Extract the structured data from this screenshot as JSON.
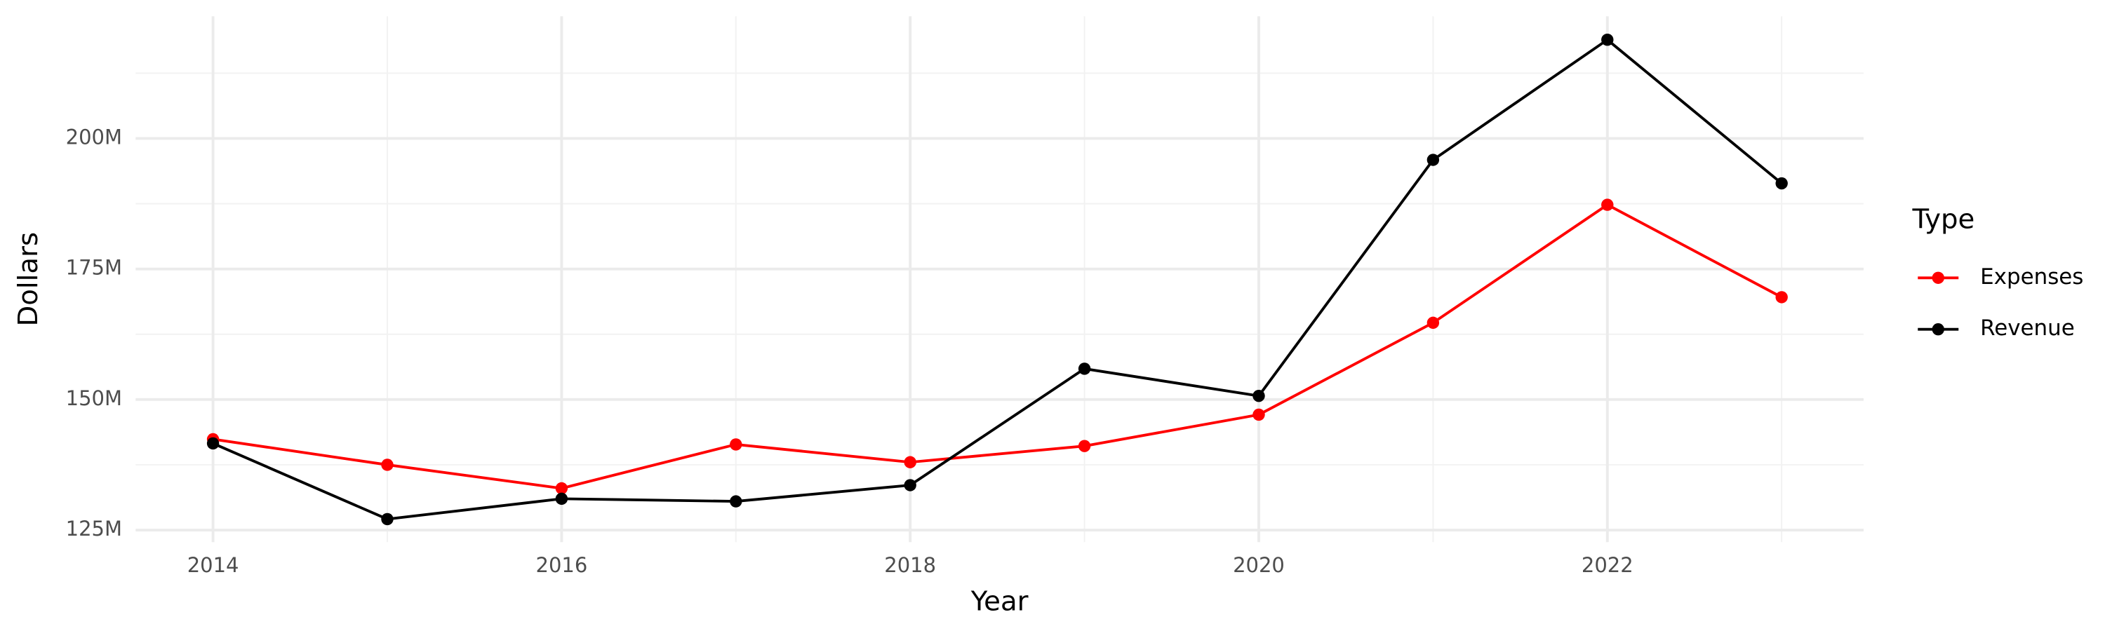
{
  "chart_data": {
    "type": "line",
    "x_label": "Year",
    "y_label": "Dollars",
    "legend_title": "Type",
    "legend_position": "right",
    "x": [
      2014,
      2015,
      2016,
      2017,
      2018,
      2019,
      2020,
      2021,
      2022,
      2023
    ],
    "series": [
      {
        "name": "Expenses",
        "color": "#ff0000",
        "values": [
          142400000,
          137500000,
          133000000,
          141400000,
          138000000,
          141100000,
          147100000,
          164700000,
          187300000,
          169600000
        ]
      },
      {
        "name": "Revenue",
        "color": "#000000",
        "values": [
          141600000,
          127100000,
          131000000,
          130500000,
          133600000,
          155900000,
          150700000,
          195900000,
          218900000,
          191400000
        ]
      }
    ],
    "xlim": [
      2013.556,
      2023.47
    ],
    "xticks": [
      2014,
      2016,
      2018,
      2020,
      2022
    ],
    "ylim": [
      122700000,
      223400000
    ],
    "yticks": [
      {
        "value": 125000000,
        "label": "125M"
      },
      {
        "value": 150000000,
        "label": "150M"
      },
      {
        "value": 175000000,
        "label": "175M"
      },
      {
        "value": 200000000,
        "label": "200M"
      }
    ],
    "grid": true
  }
}
